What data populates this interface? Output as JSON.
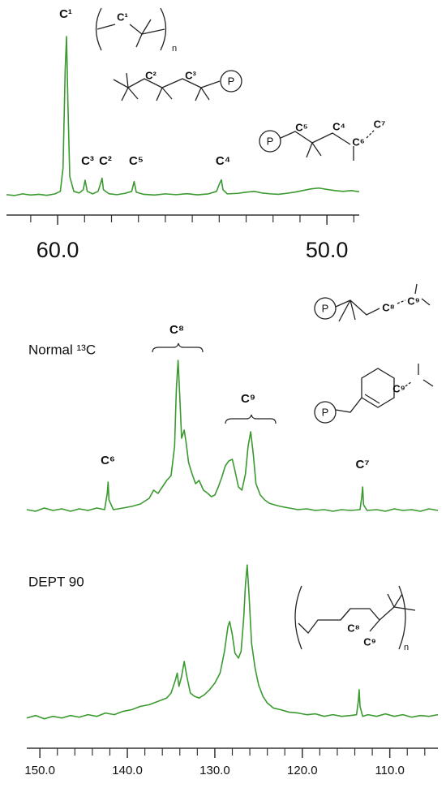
{
  "chart_data": [
    {
      "type": "line",
      "xlim": [
        61.9,
        48.8
      ],
      "ylim": [
        0,
        100
      ],
      "xticks": [
        {
          "value": 60,
          "label": "60.0"
        },
        {
          "value": 50,
          "label": "50.0"
        }
      ],
      "xminor_ticks": [
        61,
        59,
        58,
        57,
        56,
        55,
        54,
        53,
        52,
        51,
        49
      ],
      "x": [
        61.9,
        61.6,
        61.3,
        61.0,
        60.7,
        60.4,
        60.1,
        59.9,
        59.8,
        59.72,
        59.67,
        59.62,
        59.55,
        59.4,
        59.2,
        59.05,
        58.98,
        58.9,
        58.7,
        58.5,
        58.4,
        58.35,
        58.3,
        58.1,
        57.8,
        57.5,
        57.25,
        57.16,
        57.08,
        56.8,
        56.4,
        56.0,
        55.6,
        55.2,
        54.8,
        54.4,
        54.1,
        53.98,
        53.92,
        53.86,
        53.7,
        53.3,
        53.0,
        52.7,
        52.4,
        52.1,
        51.8,
        51.5,
        51.2,
        50.9,
        50.6,
        50.3,
        50.0,
        49.7,
        49.4,
        49.1,
        48.8
      ],
      "series": [
        {
          "color": "#3a9a2f",
          "values": [
            4,
            3.5,
            4.5,
            3.8,
            4.2,
            3.6,
            4.5,
            6,
            20,
            80,
            100,
            60,
            15,
            6,
            5,
            7,
            12.8,
            6,
            4.5,
            6,
            11,
            14,
            7,
            4.6,
            4,
            4.8,
            6,
            12,
            5.5,
            4.2,
            3.8,
            4.5,
            4,
            4.6,
            3.9,
            4.5,
            6,
            11,
            13,
            7,
            4.5,
            4.8,
            5.5,
            6,
            5,
            4.5,
            4.2,
            4.8,
            5.5,
            6.5,
            7.5,
            8,
            7.2,
            6.5,
            6,
            6.5,
            5.8
          ]
        }
      ],
      "annotations": [
        "C¹",
        "C³",
        "C²",
        "C⁵",
        "C⁴"
      ]
    },
    {
      "type": "line",
      "label": "Normal ¹³C",
      "xlim": [
        151.5,
        104.5
      ],
      "ylim": [
        0,
        100
      ],
      "x": [
        151.5,
        150.5,
        149.5,
        148.5,
        147.5,
        146.5,
        145.5,
        144.5,
        143.5,
        142.6,
        142.3,
        142.2,
        142.1,
        141.6,
        140.5,
        139.5,
        138.5,
        137.5,
        137,
        136.5,
        136,
        135.5,
        135,
        134.6,
        134.4,
        134.2,
        134.0,
        133.8,
        133.5,
        133.3,
        133.0,
        132.6,
        132.2,
        131.8,
        131.3,
        130.8,
        130.4,
        130,
        129.6,
        129.2,
        128.8,
        128.4,
        128.0,
        127.7,
        127.3,
        126.9,
        126.5,
        126.2,
        125.9,
        125.6,
        125.3,
        124.8,
        124.3,
        123.8,
        123.2,
        122.5,
        121.5,
        120.5,
        119.5,
        118.5,
        117.5,
        116.5,
        115.5,
        114.5,
        113.4,
        113.2,
        113.1,
        113.0,
        112.6,
        111.5,
        110.5,
        109.5,
        108.5,
        107.5,
        106.5,
        105.5,
        104.5
      ],
      "series": [
        {
          "color": "#3a9a2f",
          "values": [
            6,
            5,
            7,
            5.5,
            6.5,
            5,
            6.5,
            5.5,
            7,
            6,
            16,
            23,
            12,
            6,
            7,
            8,
            9.5,
            13,
            18,
            16,
            20,
            24,
            27,
            45,
            80,
            98,
            75,
            50,
            55,
            48,
            35,
            28,
            22,
            24,
            18,
            16,
            14,
            15,
            20,
            26,
            33,
            36,
            37,
            30,
            20,
            18,
            28,
            45,
            54,
            40,
            22,
            15,
            12,
            10,
            9,
            8,
            7,
            6,
            6.5,
            5.5,
            6,
            5,
            6,
            5.5,
            6,
            14,
            20,
            9,
            5.5,
            6,
            5,
            6.5,
            5.5,
            6,
            5,
            6.5,
            5.5
          ]
        }
      ],
      "annotations": [
        "C⁸",
        "C⁹",
        "C⁶",
        "C⁷"
      ]
    },
    {
      "type": "line",
      "label": "DEPT 90",
      "xlim": [
        151.5,
        104.5
      ],
      "ylim": [
        0,
        100
      ],
      "xticks": [
        {
          "value": 150,
          "label": "150.0"
        },
        {
          "value": 140,
          "label": "140.0"
        },
        {
          "value": 130,
          "label": "130.0"
        },
        {
          "value": 120,
          "label": "120.0"
        },
        {
          "value": 110,
          "label": "110.0"
        }
      ],
      "xminor_ticks": [
        148,
        146,
        144,
        142,
        138,
        136,
        134,
        132,
        128,
        126,
        124,
        122,
        118,
        116,
        114,
        112,
        108,
        106
      ],
      "x": [
        151.5,
        150.5,
        149.5,
        148.5,
        147.5,
        146.5,
        145.5,
        144.5,
        143.5,
        142.5,
        141.5,
        140.5,
        139.5,
        138.5,
        137.5,
        136.5,
        135.5,
        135,
        134.5,
        134.3,
        134.1,
        133.8,
        133.5,
        133.2,
        132.8,
        132.3,
        131.8,
        131.2,
        130.6,
        130,
        129.4,
        128.9,
        128.5,
        128.3,
        128.0,
        127.7,
        127.3,
        127.0,
        126.7,
        126.5,
        126.3,
        126.1,
        125.8,
        125.4,
        125.0,
        124.5,
        124,
        123.3,
        122.5,
        121.5,
        120.5,
        119.5,
        118.5,
        117.5,
        116.5,
        115.5,
        114.5,
        113.8,
        113.6,
        113.5,
        113.4,
        113.1,
        112.5,
        111.5,
        110.5,
        109.5,
        108.5,
        107.5,
        106.5,
        105.5,
        104.5
      ],
      "series": [
        {
          "color": "#3a9a2f",
          "values": [
            5,
            6.5,
            4.5,
            6,
            5,
            6.5,
            5.5,
            7,
            6,
            8,
            7,
            9,
            10,
            12,
            13,
            15,
            17,
            20,
            28,
            32,
            24,
            30,
            39,
            30,
            20,
            18,
            17,
            19,
            22,
            26,
            32,
            45,
            60,
            63,
            55,
            44,
            41,
            45,
            65,
            85,
            97,
            80,
            50,
            35,
            25,
            18,
            14,
            11,
            10,
            8.5,
            8,
            7,
            7.5,
            6,
            7,
            6,
            6.5,
            7,
            15,
            22,
            12,
            6,
            7,
            6,
            7.5,
            6,
            7,
            5.5,
            6.5,
            6,
            7
          ]
        }
      ]
    }
  ],
  "structures": [
    {
      "labels": [
        "C¹",
        "n"
      ]
    },
    {
      "labels": [
        "C²",
        "C³",
        "P"
      ]
    },
    {
      "labels": [
        "P",
        "C⁵",
        "C⁴",
        "C⁶",
        "C⁷"
      ]
    },
    {
      "labels": [
        "P",
        "C⁸",
        "C⁹"
      ]
    },
    {
      "labels": [
        "P",
        "C⁹"
      ]
    },
    {
      "labels": [
        "C⁸",
        "C⁹",
        "n"
      ]
    }
  ]
}
